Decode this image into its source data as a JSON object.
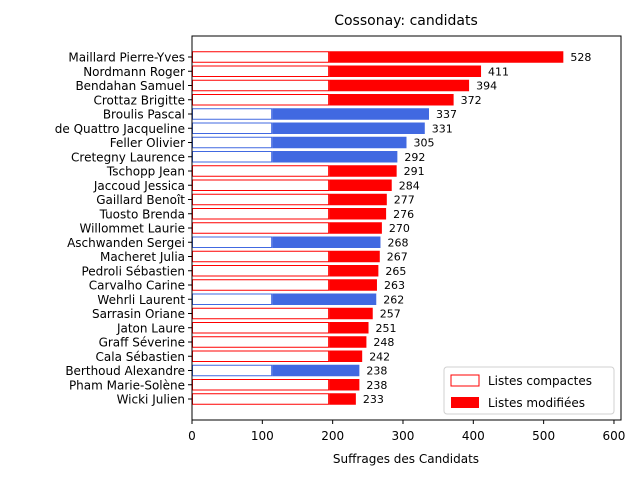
{
  "chart_data": {
    "type": "bar",
    "orientation": "horizontal",
    "title": "Cossonay: candidats",
    "xlabel": "Suffrages des Candidats",
    "ylabel": "",
    "xlim": [
      0,
      610
    ],
    "xticks": [
      0,
      100,
      200,
      300,
      400,
      500,
      600
    ],
    "legend": {
      "placement": "lower-right",
      "entries": [
        "Listes compactes",
        "Listes modifiées"
      ]
    },
    "colors": {
      "red_list": "#ff0000",
      "blue_list": "#4169e1",
      "compact_fill": "#ffffff"
    },
    "candidates": [
      {
        "name": "Maillard Pierre-Yves",
        "total": 528,
        "compact": 195,
        "list": "red"
      },
      {
        "name": "Nordmann Roger",
        "total": 411,
        "compact": 195,
        "list": "red"
      },
      {
        "name": "Bendahan Samuel",
        "total": 394,
        "compact": 195,
        "list": "red"
      },
      {
        "name": "Crottaz Brigitte",
        "total": 372,
        "compact": 195,
        "list": "red"
      },
      {
        "name": "Broulis Pascal",
        "total": 337,
        "compact": 114,
        "list": "blue"
      },
      {
        "name": "de Quattro Jacqueline",
        "total": 331,
        "compact": 114,
        "list": "blue"
      },
      {
        "name": "Feller Olivier",
        "total": 305,
        "compact": 114,
        "list": "blue"
      },
      {
        "name": "Cretegny Laurence",
        "total": 292,
        "compact": 114,
        "list": "blue"
      },
      {
        "name": "Tschopp Jean",
        "total": 291,
        "compact": 195,
        "list": "red"
      },
      {
        "name": "Jaccoud Jessica",
        "total": 284,
        "compact": 195,
        "list": "red"
      },
      {
        "name": "Gaillard Benoît",
        "total": 277,
        "compact": 195,
        "list": "red"
      },
      {
        "name": "Tuosto Brenda",
        "total": 276,
        "compact": 195,
        "list": "red"
      },
      {
        "name": "Willommet Laurie",
        "total": 270,
        "compact": 195,
        "list": "red"
      },
      {
        "name": "Aschwanden Sergei",
        "total": 268,
        "compact": 114,
        "list": "blue"
      },
      {
        "name": "Macheret Julia",
        "total": 267,
        "compact": 195,
        "list": "red"
      },
      {
        "name": "Pedroli Sébastien",
        "total": 265,
        "compact": 195,
        "list": "red"
      },
      {
        "name": "Carvalho Carine",
        "total": 263,
        "compact": 195,
        "list": "red"
      },
      {
        "name": "Wehrli Laurent",
        "total": 262,
        "compact": 114,
        "list": "blue"
      },
      {
        "name": "Sarrasin Oriane",
        "total": 257,
        "compact": 195,
        "list": "red"
      },
      {
        "name": "Jaton Laure",
        "total": 251,
        "compact": 195,
        "list": "red"
      },
      {
        "name": "Graff Séverine",
        "total": 248,
        "compact": 195,
        "list": "red"
      },
      {
        "name": "Cala Sébastien",
        "total": 242,
        "compact": 195,
        "list": "red"
      },
      {
        "name": "Berthoud Alexandre",
        "total": 238,
        "compact": 114,
        "list": "blue"
      },
      {
        "name": "Pham Marie-Solène",
        "total": 238,
        "compact": 195,
        "list": "red"
      },
      {
        "name": "Wicki Julien",
        "total": 233,
        "compact": 195,
        "list": "red"
      }
    ]
  }
}
